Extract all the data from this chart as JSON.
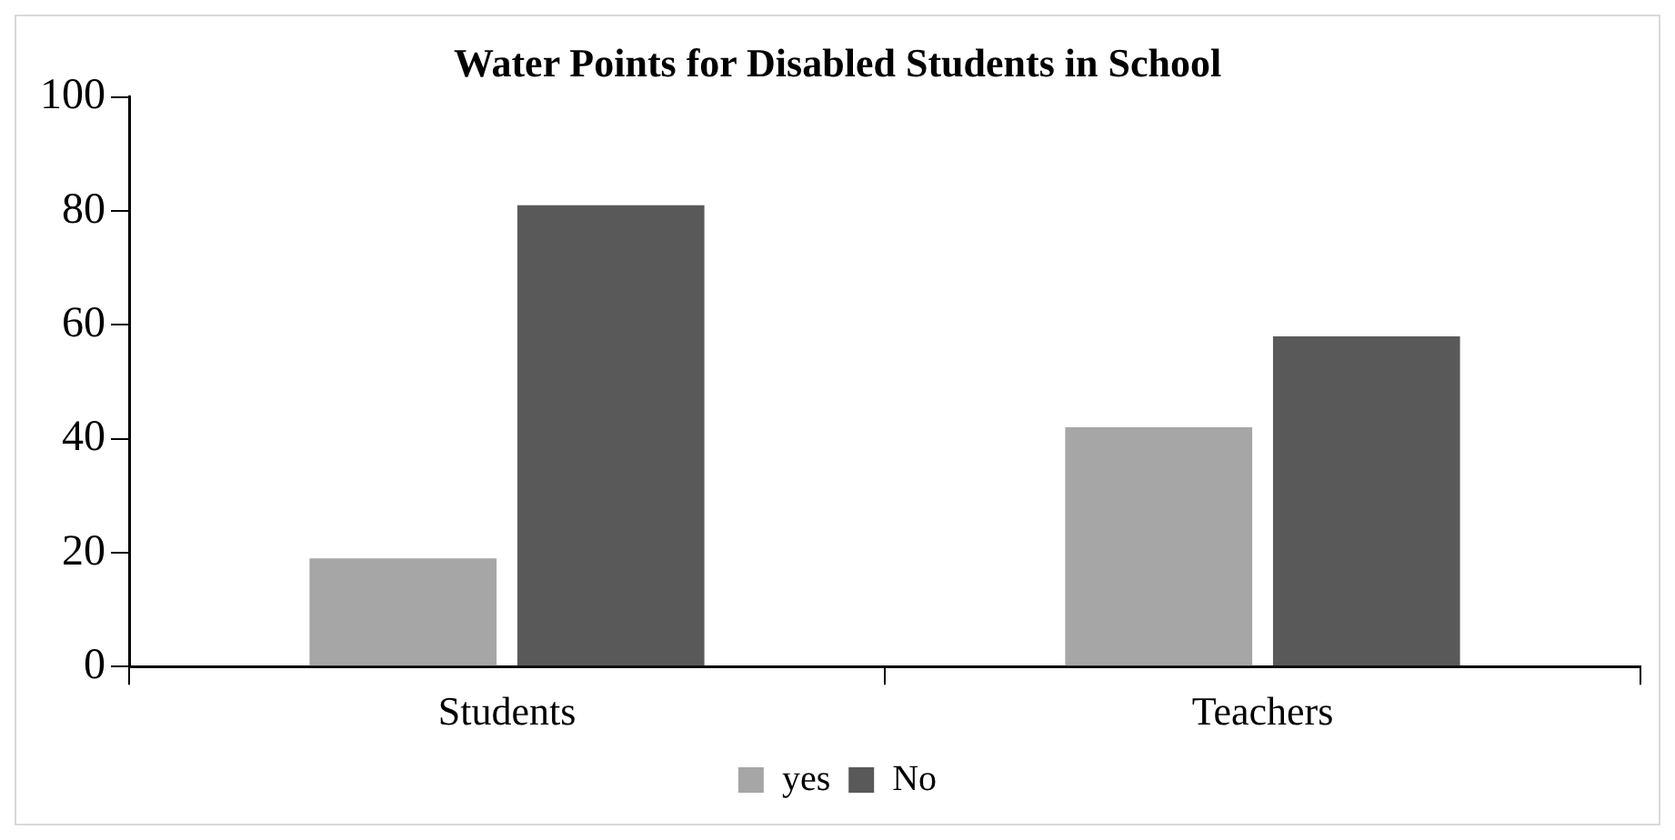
{
  "chart_data": {
    "type": "bar",
    "title": "Water Points for Disabled Students in School",
    "categories": [
      "Students",
      "Teachers"
    ],
    "series": [
      {
        "name": "yes",
        "color": "#a6a6a6",
        "values": [
          19,
          42
        ]
      },
      {
        "name": "No",
        "color": "#595959",
        "values": [
          81,
          58
        ]
      }
    ],
    "ylim": [
      0,
      100
    ],
    "yticks": [
      0,
      20,
      40,
      60,
      80,
      100
    ],
    "grid": false,
    "legend": "bottom"
  }
}
